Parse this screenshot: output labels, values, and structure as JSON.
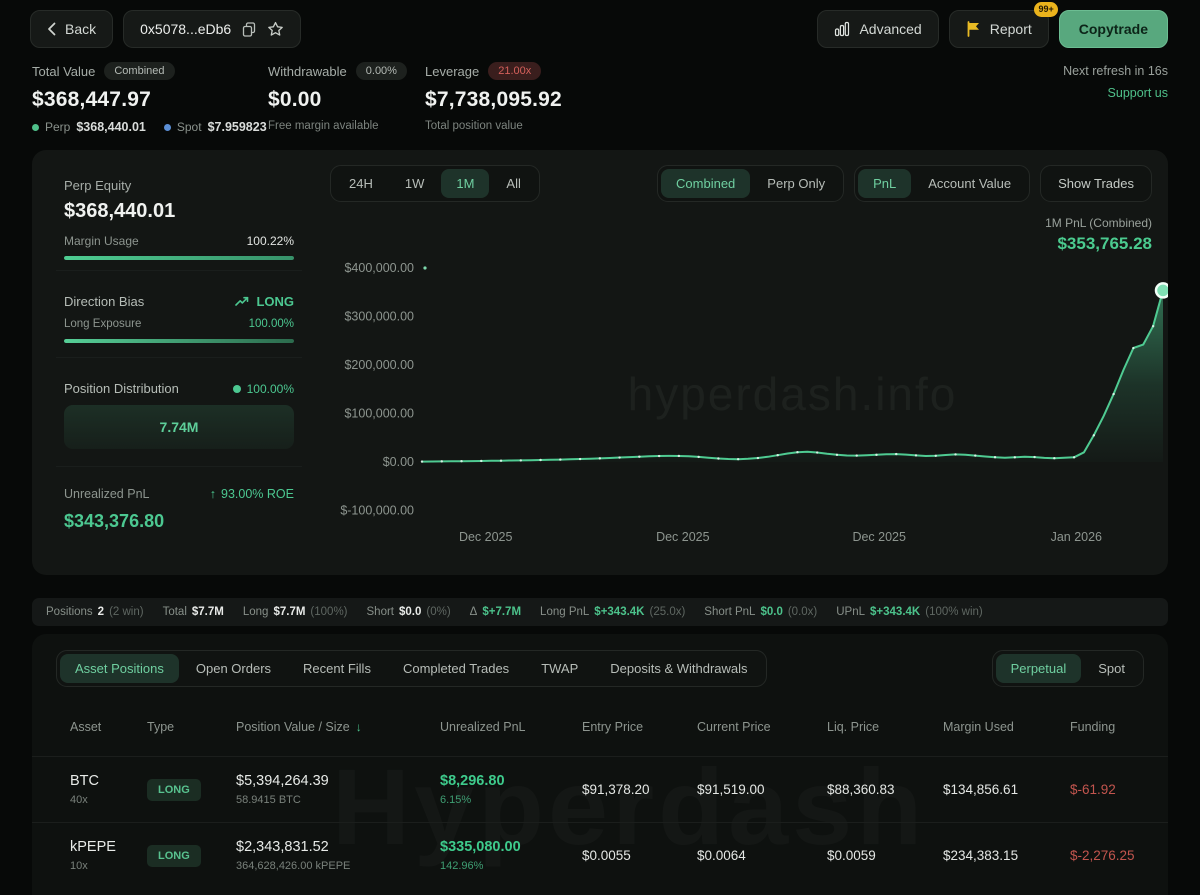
{
  "header": {
    "back": "Back",
    "address": "0x5078...eDb6",
    "advanced": "Advanced",
    "report": "Report",
    "report_badge": "99+",
    "copytrade": "Copytrade"
  },
  "stats": {
    "total": {
      "label": "Total Value",
      "badge": "Combined",
      "value": "$368,447.97",
      "perp_label": "Perp",
      "perp_value": "$368,440.01",
      "spot_label": "Spot",
      "spot_value": "$7.959823"
    },
    "withdrawable": {
      "label": "Withdrawable",
      "badge": "0.00%",
      "value": "$0.00",
      "sub": "Free margin available"
    },
    "leverage": {
      "label": "Leverage",
      "badge": "21.00x",
      "value": "$7,738,095.92",
      "sub": "Total position value"
    },
    "refresh": "Next refresh in 16s",
    "support": "Support us"
  },
  "perp_panel": {
    "equity_label": "Perp Equity",
    "equity_value": "$368,440.01",
    "margin_usage_label": "Margin Usage",
    "margin_usage_value": "100.22%",
    "direction_bias_label": "Direction Bias",
    "direction_bias_value": "LONG",
    "long_exposure_label": "Long Exposure",
    "long_exposure_value": "100.00%",
    "position_distribution_label": "Position Distribution",
    "position_distribution_value": "100.00%",
    "distribution_box_value": "7.74M",
    "unrealized_pnl_label": "Unrealized PnL",
    "roe_value": "93.00% ROE",
    "unrealized_pnl_value": "$343,376.80"
  },
  "chart": {
    "ranges": [
      "24H",
      "1W",
      "1M",
      "All"
    ],
    "active_range": "1M",
    "modes": [
      "Combined",
      "Perp Only"
    ],
    "active_mode": "Combined",
    "views": [
      "PnL",
      "Account Value"
    ],
    "active_view": "PnL",
    "show_trades": "Show Trades",
    "pnl_label": "1M PnL (Combined)",
    "pnl_value": "$353,765.28",
    "watermark": "hyperdash.info"
  },
  "chart_data": {
    "type": "area",
    "title": "1M PnL (Combined)",
    "final_value": 353765.28,
    "ylim": [
      -100000,
      400000
    ],
    "y_ticks": [
      {
        "label": "$400,000.00",
        "value": 400000
      },
      {
        "label": "$300,000.00",
        "value": 300000
      },
      {
        "label": "$200,000.00",
        "value": 200000
      },
      {
        "label": "$100,000.00",
        "value": 100000
      },
      {
        "label": "$0.00",
        "value": 0
      },
      {
        "label": "$-100,000.00",
        "value": -100000
      }
    ],
    "x_ticks": [
      {
        "label": "Dec 2025",
        "pos": 0.086
      },
      {
        "label": "Dec 2025",
        "pos": 0.352
      },
      {
        "label": "Dec 2025",
        "pos": 0.617
      },
      {
        "label": "Jan 2026",
        "pos": 0.883
      }
    ],
    "values": [
      800,
      1000,
      1300,
      1500,
      1700,
      1900,
      2100,
      2400,
      2700,
      3000,
      3300,
      3700,
      4100,
      4500,
      5000,
      5500,
      6100,
      6800,
      7500,
      8300,
      9200,
      10100,
      11000,
      11800,
      12300,
      12600,
      12400,
      11800,
      10500,
      8800,
      7200,
      6200,
      5800,
      6500,
      8200,
      10800,
      14000,
      17500,
      20200,
      21000,
      19500,
      17000,
      14800,
      13500,
      13200,
      13800,
      14800,
      15800,
      16300,
      15200,
      13600,
      12400,
      12800,
      14400,
      15600,
      15000,
      13200,
      11400,
      9800,
      8800,
      9600,
      11000,
      10200,
      8400,
      7800,
      8800,
      9600,
      20000,
      55000,
      95000,
      140000,
      190000,
      235000,
      242000,
      280000,
      353765
    ],
    "line_color": "#4fcb92",
    "legend": "none",
    "grid": false
  },
  "summary": {
    "items": [
      {
        "label": "Positions",
        "value": "2",
        "extra": "(2 win)",
        "tone": "white"
      },
      {
        "label": "Total",
        "value": "$7.7M",
        "extra": "",
        "tone": "white"
      },
      {
        "label": "Long",
        "value": "$7.7M",
        "extra": "(100%)",
        "tone": "white"
      },
      {
        "label": "Short",
        "value": "$0.0",
        "extra": "(0%)",
        "tone": "white"
      },
      {
        "label": "Δ",
        "value": "$+7.7M",
        "extra": "",
        "tone": "green"
      },
      {
        "label": "Long PnL",
        "value": "$+343.4K",
        "extra": "(25.0x)",
        "tone": "green"
      },
      {
        "label": "Short PnL",
        "value": "$0.0",
        "extra": "(0.0x)",
        "tone": "green"
      },
      {
        "label": "UPnL",
        "value": "$+343.4K",
        "extra": "(100% win)",
        "tone": "green"
      }
    ]
  },
  "positions": {
    "tabs": [
      "Asset Positions",
      "Open Orders",
      "Recent Fills",
      "Completed Trades",
      "TWAP",
      "Deposits & Withdrawals"
    ],
    "active_tab": "Asset Positions",
    "markets": [
      "Perpetual",
      "Spot"
    ],
    "active_market": "Perpetual",
    "columns": [
      "Asset",
      "Type",
      "Position Value / Size",
      "Unrealized PnL",
      "Entry Price",
      "Current Price",
      "Liq. Price",
      "Margin Used",
      "Funding"
    ],
    "sort_column": "Position Value / Size",
    "sort_direction": "desc",
    "rows": [
      {
        "asset": "BTC",
        "leverage": "40x",
        "type": "LONG",
        "value": "$5,394,264.39",
        "size": "58.9415 BTC",
        "pnl": "$8,296.80",
        "roe": "6.15%",
        "entry": "$91,378.20",
        "current": "$91,519.00",
        "liq": "$88,360.83",
        "margin": "$134,856.61",
        "funding": "$-61.92"
      },
      {
        "asset": "kPEPE",
        "leverage": "10x",
        "type": "LONG",
        "value": "$2,343,831.52",
        "size": "364,628,426.00 kPEPE",
        "pnl": "$335,080.00",
        "roe": "142.96%",
        "entry": "$0.0055",
        "current": "$0.0064",
        "liq": "$0.0059",
        "margin": "$234,383.15",
        "funding": "$-2,276.25"
      }
    ],
    "table_watermark": "Hyperdash"
  },
  "colors": {
    "accent_green": "#4cc891",
    "bright_green_button": "#58a87e",
    "negative_red": "#c2554e",
    "badge_yellow": "#eab31c",
    "perp_dot": "#4fc08a",
    "spot_dot": "#5b8fd6"
  }
}
